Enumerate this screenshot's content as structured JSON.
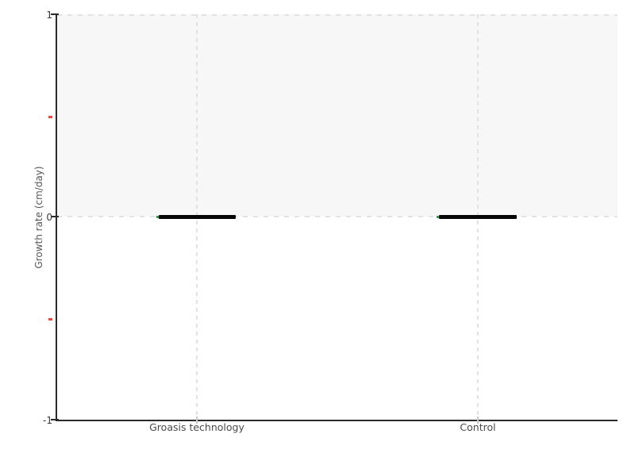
{
  "chart_data": {
    "type": "box",
    "title": "",
    "categories": [
      "Groasis technology",
      "Control"
    ],
    "values": [
      0,
      0
    ],
    "series": [
      {
        "name": "Groasis technology",
        "median": 0,
        "mean": 0
      },
      {
        "name": "Control",
        "median": 0,
        "mean": 0
      }
    ],
    "xlabel": "",
    "ylabel": "Growth rate (cm/day)",
    "ylim": [
      -1,
      1
    ],
    "ytick_labels": [
      "1",
      "0",
      "-1"
    ],
    "yticks_major": [
      1,
      0,
      -1
    ],
    "yticks_minor": [
      0.5,
      -0.5
    ],
    "legend": "none",
    "grid": {
      "horizontal_dashed_at": [
        1,
        0
      ],
      "vertical_dashed_at_categories": true
    },
    "shaded_band": {
      "from_y": 0,
      "to_y": 1
    }
  },
  "colors": {
    "axis": "#2b2b2b",
    "tick-label": "#3a3a3a",
    "cat-label": "#4a4a4a",
    "axis-title": "#555555",
    "minor-tick": "#f0453c",
    "gridline": "#e2e2e2",
    "band-fill": "#f7f7f7",
    "median-bar": "#060606",
    "mean-marker": "#2f9e44"
  }
}
